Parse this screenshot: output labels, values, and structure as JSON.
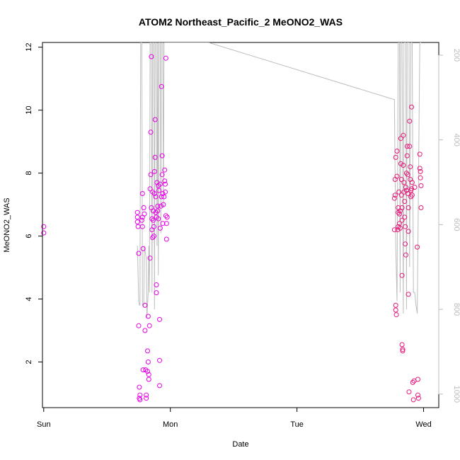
{
  "chart_data": {
    "type": "scatter",
    "title": "ATOM2 Northeast_Pacific_2 MeONO2_WAS",
    "xlabel": "Date",
    "ylabel": "MeONO2_WAS",
    "x_ticks": [
      "Sun",
      "Mon",
      "Tue",
      "Wed"
    ],
    "xlim": [
      -0.01,
      3.12
    ],
    "ylim": [
      0.55,
      12.15
    ],
    "y_ticks": [
      2,
      4,
      6,
      8,
      10,
      12
    ],
    "right_axis": {
      "quantity": "pressure",
      "reversed": true,
      "lim": [
        1032,
        170
      ],
      "ticks": [
        200,
        400,
        600,
        800,
        1000
      ]
    },
    "grid": false,
    "colors": {
      "points": "#e600e6",
      "points_wed": "#e6197a",
      "pressure_line": "#bdbdbd"
    },
    "series": [
      {
        "kind": "points",
        "points": [
          [
            0.0,
            6.3
          ],
          [
            0.0,
            6.1
          ],
          [
            0.74,
            6.75
          ],
          [
            0.74,
            6.6
          ],
          [
            0.74,
            6.45
          ],
          [
            0.745,
            6.3
          ],
          [
            0.75,
            5.45
          ],
          [
            0.75,
            3.15
          ],
          [
            0.755,
            1.2
          ],
          [
            0.755,
            0.85
          ],
          [
            0.76,
            0.95
          ],
          [
            0.76,
            0.8
          ],
          [
            0.775,
            6.5
          ],
          [
            0.78,
            7.35
          ],
          [
            0.78,
            6.6
          ],
          [
            0.78,
            6.3
          ],
          [
            0.785,
            5.6
          ],
          [
            0.785,
            1.75
          ],
          [
            0.79,
            6.9
          ],
          [
            0.795,
            6.7
          ],
          [
            0.8,
            3.8
          ],
          [
            0.8,
            3.0
          ],
          [
            0.805,
            1.75
          ],
          [
            0.81,
            0.95
          ],
          [
            0.81,
            0.85
          ],
          [
            0.82,
            2.35
          ],
          [
            0.82,
            1.7
          ],
          [
            0.825,
            3.45
          ],
          [
            0.825,
            2.0
          ],
          [
            0.83,
            1.6
          ],
          [
            0.83,
            1.45
          ],
          [
            0.835,
            3.15
          ],
          [
            0.84,
            5.3
          ],
          [
            0.84,
            7.5
          ],
          [
            0.845,
            7.95
          ],
          [
            0.845,
            9.3
          ],
          [
            0.85,
            11.7
          ],
          [
            0.85,
            6.9
          ],
          [
            0.855,
            6.55
          ],
          [
            0.855,
            6.2
          ],
          [
            0.86,
            5.95
          ],
          [
            0.86,
            7.4
          ],
          [
            0.865,
            6.8
          ],
          [
            0.865,
            6.5
          ],
          [
            0.87,
            6.3
          ],
          [
            0.87,
            6.0
          ],
          [
            0.875,
            8.05
          ],
          [
            0.875,
            7.35
          ],
          [
            0.88,
            9.7
          ],
          [
            0.88,
            8.5
          ],
          [
            0.885,
            7.25
          ],
          [
            0.885,
            6.75
          ],
          [
            0.89,
            6.6
          ],
          [
            0.89,
            4.45
          ],
          [
            0.89,
            4.2
          ],
          [
            0.895,
            7.7
          ],
          [
            0.9,
            6.95
          ],
          [
            0.9,
            6.8
          ],
          [
            0.905,
            7.6
          ],
          [
            0.905,
            6.55
          ],
          [
            0.91,
            7.45
          ],
          [
            0.915,
            3.35
          ],
          [
            0.915,
            2.05
          ],
          [
            0.915,
            1.25
          ],
          [
            0.92,
            7.65
          ],
          [
            0.92,
            6.25
          ],
          [
            0.925,
            6.95
          ],
          [
            0.93,
            7.25
          ],
          [
            0.93,
            10.75
          ],
          [
            0.935,
            7.95
          ],
          [
            0.935,
            8.55
          ],
          [
            0.94,
            6.4
          ],
          [
            0.94,
            7.35
          ],
          [
            0.945,
            7.0
          ],
          [
            0.95,
            7.25
          ],
          [
            0.955,
            8.1
          ],
          [
            0.955,
            7.75
          ],
          [
            0.96,
            7.65
          ],
          [
            0.96,
            7.4
          ],
          [
            0.965,
            11.65
          ],
          [
            0.965,
            6.65
          ],
          [
            0.97,
            6.4
          ],
          [
            0.97,
            5.9
          ],
          [
            0.975,
            6.6
          ],
          [
            2.77,
            6.2
          ],
          [
            2.77,
            7.2
          ],
          [
            2.775,
            7.3
          ],
          [
            2.775,
            7.8
          ],
          [
            2.78,
            8.5
          ],
          [
            2.78,
            3.8
          ],
          [
            2.78,
            3.65
          ],
          [
            2.785,
            3.5
          ],
          [
            2.79,
            7.9
          ],
          [
            2.79,
            8.7
          ],
          [
            2.795,
            6.2
          ],
          [
            2.8,
            6.3
          ],
          [
            2.8,
            6.75
          ],
          [
            2.8,
            6.9
          ],
          [
            2.805,
            7.4
          ],
          [
            2.81,
            6.7
          ],
          [
            2.81,
            6.4
          ],
          [
            2.815,
            6.8
          ],
          [
            2.815,
            6.25
          ],
          [
            2.82,
            9.1
          ],
          [
            2.82,
            8.3
          ],
          [
            2.825,
            7.8
          ],
          [
            2.825,
            7.3
          ],
          [
            2.83,
            6.9
          ],
          [
            2.83,
            6.5
          ],
          [
            2.83,
            4.75
          ],
          [
            2.83,
            2.55
          ],
          [
            2.835,
            2.4
          ],
          [
            2.835,
            2.35
          ],
          [
            2.84,
            9.2
          ],
          [
            2.84,
            8.25
          ],
          [
            2.845,
            7.7
          ],
          [
            2.845,
            7.4
          ],
          [
            2.85,
            7.1
          ],
          [
            2.85,
            6.6
          ],
          [
            2.855,
            6.3
          ],
          [
            2.855,
            5.75
          ],
          [
            2.86,
            5.4
          ],
          [
            2.86,
            7.55
          ],
          [
            2.865,
            8.0
          ],
          [
            2.865,
            7.45
          ],
          [
            2.87,
            8.85
          ],
          [
            2.87,
            8.55
          ],
          [
            2.875,
            7.95
          ],
          [
            2.875,
            7.35
          ],
          [
            2.88,
            6.9
          ],
          [
            2.88,
            6.15
          ],
          [
            2.88,
            4.15
          ],
          [
            2.885,
            1.05
          ],
          [
            2.89,
            9.65
          ],
          [
            2.89,
            8.85
          ],
          [
            2.895,
            8.2
          ],
          [
            2.895,
            7.8
          ],
          [
            2.9,
            7.45
          ],
          [
            2.9,
            7.25
          ],
          [
            2.905,
            7.5
          ],
          [
            2.905,
            10.1
          ],
          [
            2.91,
            7.7
          ],
          [
            2.91,
            7.3
          ],
          [
            2.915,
            1.35
          ],
          [
            2.92,
            0.8
          ],
          [
            2.925,
            1.4
          ],
          [
            2.93,
            7.55
          ],
          [
            2.95,
            5.65
          ],
          [
            2.955,
            1.45
          ],
          [
            2.955,
            0.95
          ],
          [
            2.96,
            0.85
          ],
          [
            2.97,
            8.6
          ],
          [
            2.97,
            8.15
          ],
          [
            2.975,
            8.05
          ],
          [
            2.975,
            7.85
          ],
          [
            2.98,
            7.6
          ],
          [
            2.98,
            6.9
          ]
        ]
      },
      {
        "kind": "pressure",
        "points": [
          [
            0.74,
            650
          ],
          [
            0.75,
            780
          ],
          [
            0.755,
            790
          ],
          [
            0.76,
            790
          ],
          [
            0.765,
            170
          ],
          [
            0.775,
            170
          ],
          [
            0.78,
            790
          ],
          [
            0.79,
            790
          ],
          [
            0.795,
            650
          ],
          [
            0.81,
            680
          ],
          [
            0.815,
            820
          ],
          [
            0.825,
            760
          ],
          [
            0.83,
            650
          ],
          [
            0.835,
            760
          ],
          [
            0.84,
            170
          ],
          [
            0.85,
            170
          ],
          [
            0.855,
            760
          ],
          [
            0.86,
            170
          ],
          [
            0.87,
            170
          ],
          [
            0.875,
            800
          ],
          [
            0.88,
            170
          ],
          [
            0.89,
            170
          ],
          [
            0.895,
            650
          ],
          [
            0.9,
            170
          ],
          [
            0.905,
            720
          ],
          [
            0.91,
            170
          ],
          [
            0.92,
            170
          ],
          [
            0.925,
            620
          ],
          [
            0.93,
            170
          ],
          [
            0.94,
            170
          ],
          [
            0.945,
            560
          ],
          [
            0.95,
            170
          ],
          [
            0.96,
            170
          ],
          [
            0.965,
            170
          ],
          [
            1.3,
            170
          ],
          [
            2.77,
            305
          ],
          [
            2.77,
            320
          ],
          [
            2.78,
            650
          ],
          [
            2.79,
            780
          ],
          [
            2.8,
            170
          ],
          [
            2.81,
            170
          ],
          [
            2.815,
            760
          ],
          [
            2.82,
            170
          ],
          [
            2.83,
            170
          ],
          [
            2.84,
            810
          ],
          [
            2.845,
            170
          ],
          [
            2.86,
            170
          ],
          [
            2.865,
            800
          ],
          [
            2.87,
            170
          ],
          [
            2.885,
            170
          ],
          [
            2.89,
            700
          ],
          [
            2.9,
            170
          ],
          [
            2.91,
            170
          ],
          [
            2.92,
            760
          ],
          [
            2.93,
            760
          ],
          [
            2.94,
            790
          ],
          [
            2.95,
            810
          ],
          [
            2.97,
            170
          ],
          [
            2.98,
            170
          ]
        ]
      }
    ]
  }
}
